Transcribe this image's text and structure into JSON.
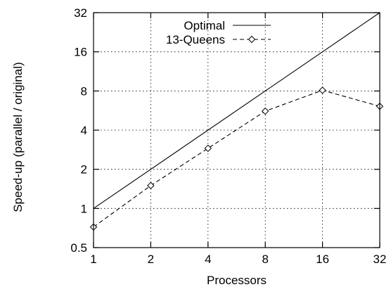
{
  "chart_data": {
    "type": "line",
    "title": "",
    "xlabel": "Processors",
    "ylabel": "Speed-up  (parallel / original)",
    "x_scale": "log2",
    "y_scale": "log2",
    "xlim": [
      1,
      32
    ],
    "ylim": [
      0.5,
      32
    ],
    "x_ticks": [
      1,
      2,
      4,
      8,
      16,
      32
    ],
    "x_tick_labels": [
      "1",
      "2",
      "4",
      "8",
      "16",
      "32"
    ],
    "y_ticks": [
      0.5,
      1,
      2,
      4,
      8,
      16,
      32
    ],
    "y_tick_labels": [
      "0.5",
      "1",
      "2",
      "4",
      "8",
      "16",
      "32"
    ],
    "grid": true,
    "legend_position": "top-center",
    "series": [
      {
        "name": "Optimal",
        "style": "solid",
        "marker": "none",
        "x": [
          1,
          32
        ],
        "y": [
          1,
          32
        ]
      },
      {
        "name": "13-Queens",
        "style": "dashed",
        "marker": "diamond",
        "x": [
          1,
          2,
          4,
          8,
          16,
          32
        ],
        "y": [
          0.72,
          1.5,
          2.9,
          5.6,
          8.1,
          6.1
        ]
      }
    ]
  }
}
